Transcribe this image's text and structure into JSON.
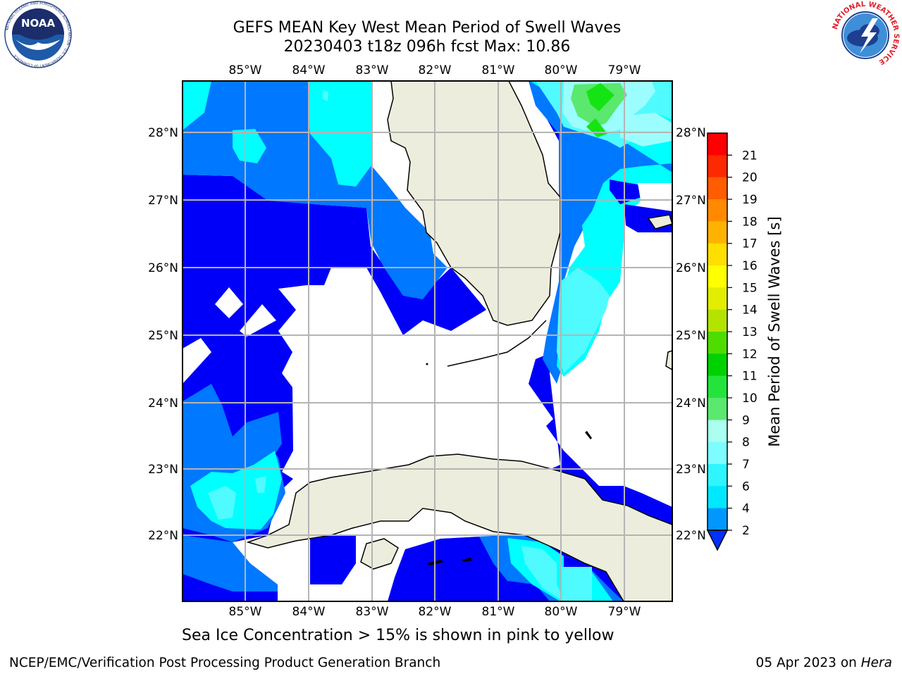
{
  "title_line1": "GEFS MEAN Key West Mean Period of Swell Waves",
  "title_line2": "20230403 t18z 096h fcst   Max: 10.86",
  "lon_labels": [
    "85°W",
    "84°W",
    "83°W",
    "82°W",
    "81°W",
    "80°W",
    "79°W"
  ],
  "lat_labels": [
    "28°N",
    "27°N",
    "26°N",
    "25°N",
    "24°N",
    "23°N",
    "22°N"
  ],
  "colorbar": {
    "label": "Mean Period of Swell Waves [s]",
    "ticks": [
      "2",
      "4",
      "6",
      "7",
      "8",
      "9",
      "10",
      "11",
      "12",
      "13",
      "14",
      "15",
      "16",
      "17",
      "18",
      "19",
      "20",
      "21"
    ],
    "colors": [
      "#0030ff",
      "#0097ff",
      "#00e8ff",
      "#2ff5ff",
      "#7dfdff",
      "#aafff0",
      "#5ae86e",
      "#24e43c",
      "#00d200",
      "#4fdc00",
      "#b4e300",
      "#e2ed00",
      "#ffff00",
      "#ffdf00",
      "#ffb200",
      "#ff8a00",
      "#ff5d00",
      "#ff2900",
      "#ff0000"
    ]
  },
  "map_colors": {
    "land": "#ededdd",
    "level_2_4": "#0000fa",
    "level_4_6": "#0078ff",
    "level_6_7": "#00ffff",
    "level_7_8": "#50fbff",
    "level_8_9": "#9cfdff",
    "level_9_10": "#5ae86e",
    "level_10_11": "#14e414",
    "grid": "#b4b4b4"
  },
  "note": "Sea Ice Concentration > 15% is shown in pink to yellow",
  "footer_left": "NCEP/EMC/Verification Post Processing Product Generation Branch",
  "footer_date": "05 Apr 2023 on",
  "footer_machine": "Hera",
  "noaa_logo_text": "NOAA",
  "noaa_ring_text": "NATIONAL OCEANIC AND ATMOSPHERIC ADMINISTRATION · U.S. DEPARTMENT OF COMMERCE",
  "nws_ring_text": "NATIONAL WEATHER SERVICE"
}
